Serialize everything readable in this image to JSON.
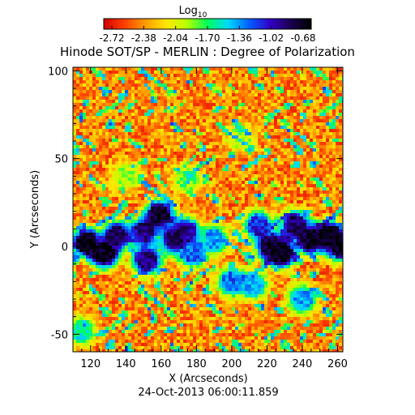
{
  "chart_data": {
    "type": "heatmap",
    "title": "Hinode SOT/SP - MERLIN : Degree of Polarization",
    "xlabel": "X (Arcseconds)",
    "ylabel": "Y (Arcseconds)",
    "timestamp": "24-Oct-2013 06:00:11.859",
    "xlim": [
      110,
      263
    ],
    "ylim": [
      -60,
      102
    ],
    "x_ticks": [
      120,
      140,
      160,
      180,
      200,
      220,
      240,
      260
    ],
    "y_ticks": [
      -50,
      0,
      50,
      100
    ],
    "colorbar": {
      "label_base": "Log",
      "label_sub": "10",
      "ticks": [
        "-2.72",
        "-2.38",
        "-2.04",
        "-1.70",
        "-1.36",
        "-1.02",
        "-0.68"
      ],
      "range": [
        -2.72,
        -0.68
      ],
      "colors": [
        "#d00000",
        "#ff4000",
        "#ff9a00",
        "#ffe600",
        "#b8ff00",
        "#00ff5a",
        "#00d8ff",
        "#0060ff",
        "#3200c8",
        "#1a0050",
        "#000000"
      ]
    },
    "polarization_clusters": [
      {
        "x": 118,
        "y": 2,
        "strength": -0.7
      },
      {
        "x": 128,
        "y": -4,
        "strength": -0.75
      },
      {
        "x": 135,
        "y": 6,
        "strength": -0.9
      },
      {
        "x": 150,
        "y": 8,
        "strength": -1.0
      },
      {
        "x": 152,
        "y": -8,
        "strength": -0.95
      },
      {
        "x": 159,
        "y": 18,
        "strength": -0.8
      },
      {
        "x": 168,
        "y": 4,
        "strength": -0.9
      },
      {
        "x": 174,
        "y": 8,
        "strength": -1.0
      },
      {
        "x": 178,
        "y": -4,
        "strength": -1.3
      },
      {
        "x": 190,
        "y": 4,
        "strength": -1.4
      },
      {
        "x": 200,
        "y": -20,
        "strength": -1.3
      },
      {
        "x": 215,
        "y": 12,
        "strength": -1.2
      },
      {
        "x": 222,
        "y": 0,
        "strength": -0.85
      },
      {
        "x": 228,
        "y": -4,
        "strength": -0.75
      },
      {
        "x": 236,
        "y": 12,
        "strength": -0.9
      },
      {
        "x": 245,
        "y": 4,
        "strength": -0.8
      },
      {
        "x": 255,
        "y": 6,
        "strength": -0.7
      },
      {
        "x": 262,
        "y": 0,
        "strength": -0.75
      },
      {
        "x": 212,
        "y": -22,
        "strength": -1.4
      },
      {
        "x": 240,
        "y": -30,
        "strength": -1.4
      },
      {
        "x": 115,
        "y": -48,
        "strength": -1.6
      },
      {
        "x": 175,
        "y": 38,
        "strength": -1.8
      },
      {
        "x": 205,
        "y": 62,
        "strength": -1.9
      },
      {
        "x": 140,
        "y": 40,
        "strength": -1.9
      }
    ]
  }
}
